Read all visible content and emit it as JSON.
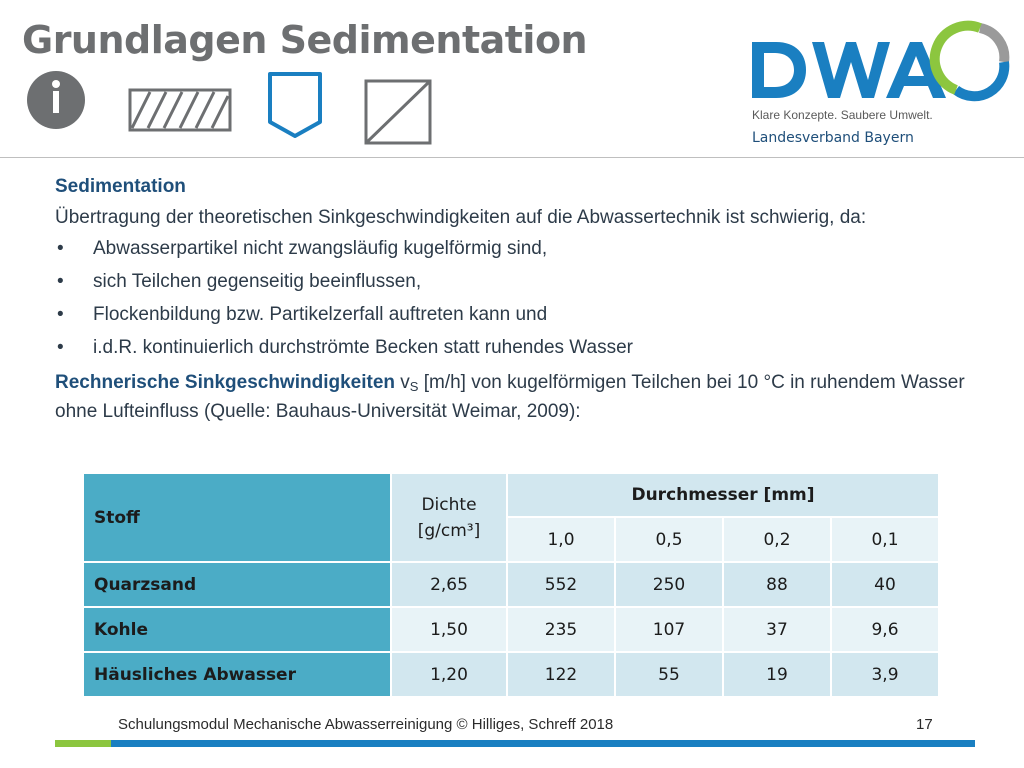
{
  "title": "Grundlagen Sedimentation",
  "logo": {
    "text": "DWA",
    "tagline": "Klare Konzepte. Saubere Umwelt.",
    "subtitle": "Landesverband Bayern",
    "colors": {
      "blue": "#1a7fc1",
      "green": "#8cc63f",
      "gray": "#9a9a9a"
    }
  },
  "icons": [
    "info-icon",
    "hatch-rectangle-icon",
    "shield-icon",
    "diagonal-square-icon"
  ],
  "content": {
    "heading": "Sedimentation",
    "intro": "Übertragung der theoretischen Sinkgeschwindigkeiten auf die Abwassertechnik ist schwierig, da:",
    "bullet_symbol": "•",
    "bullets": [
      "Abwasserpartikel nicht zwangsläufig kugelförmig sind,",
      "sich Teilchen gegenseitig beeinflussen,",
      "Flockenbildung  bzw. Partikelzerfall auftreten kann und",
      "i.d.R. kontinuierlich durchströmte Becken statt ruhendes Wasser"
    ],
    "rech_strong": "Rechnerische Sinkgeschwindigkeiten",
    "rech_v": "v",
    "rech_sub": "S",
    "rech_rest": " [m/h] von kugelförmigen Teilchen bei 10 °C in ruhendem Wasser ohne Lufteinfluss (Quelle: Bauhaus-Universität Weimar, 2009):"
  },
  "table": {
    "h_stoff": "Stoff",
    "h_dichte": "Dichte [g/cm³]",
    "h_durchmesser": "Durchmesser [mm]",
    "diameters": [
      "1,0",
      "0,5",
      "0,2",
      "0,1"
    ],
    "rows": [
      {
        "stoff": "Quarzsand",
        "dichte": "2,65",
        "values": [
          "552",
          "250",
          "88",
          "40"
        ]
      },
      {
        "stoff": "Kohle",
        "dichte": "1,50",
        "values": [
          "235",
          "107",
          "37",
          "9,6"
        ]
      },
      {
        "stoff": "Häusliches Abwasser",
        "dichte": "1,20",
        "values": [
          "122",
          "55",
          "19",
          "3,9"
        ]
      }
    ]
  },
  "footer": {
    "text": "Schulungsmodul Mechanische Abwasserreinigung © Hilliges, Schreff  2018",
    "page": "17"
  }
}
